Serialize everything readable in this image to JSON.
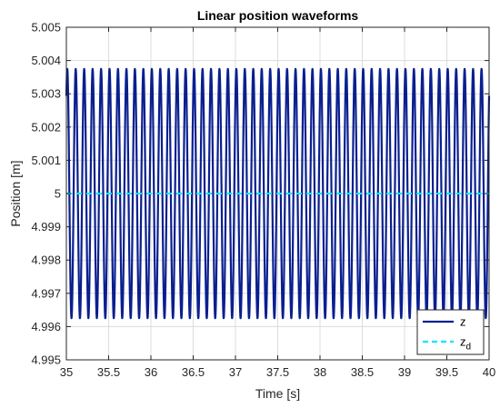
{
  "chart_data": {
    "type": "line",
    "title": "Linear position waveforms",
    "xlabel": "Time [s]",
    "ylabel": "Position [m]",
    "xlim": [
      35,
      40
    ],
    "ylim": [
      4.995,
      5.005
    ],
    "xticks": [
      35,
      35.5,
      36,
      36.5,
      37,
      37.5,
      38,
      38.5,
      39,
      39.5,
      40
    ],
    "xtick_labels": [
      "35",
      "35.5",
      "36",
      "36.5",
      "37",
      "37.5",
      "38",
      "38.5",
      "39",
      "39.5",
      "40"
    ],
    "yticks": [
      4.995,
      4.996,
      4.997,
      4.998,
      4.999,
      5,
      5.001,
      5.002,
      5.003,
      5.004,
      5.005
    ],
    "ytick_labels": [
      "4.995",
      "4.996",
      "4.997",
      "4.998",
      "4.999",
      "5",
      "5.001",
      "5.002",
      "5.003",
      "5.004",
      "5.005"
    ],
    "grid": true,
    "legend_position": "bottom-right",
    "series": [
      {
        "name": "z",
        "color": "#0a1f8f",
        "style": "solid",
        "waveform": "sinusoid",
        "center": 5.0,
        "amplitude": 0.00375,
        "frequency_hz": 10.0
      },
      {
        "name": "z_d",
        "legend_main": "z",
        "legend_sub": "d",
        "color": "#00e5ff",
        "style": "dashed",
        "waveform": "constant",
        "value": 5.0
      }
    ]
  }
}
